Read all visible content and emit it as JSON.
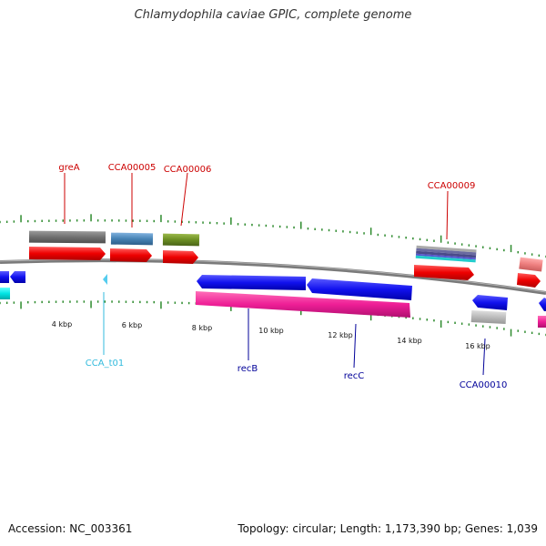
{
  "title": "Chlamydophila caviae GPIC, complete genome",
  "footer": {
    "accession": "Accession: NC_003361",
    "summary": "Topology: circular; Length: 1,173,390 bp; Genes: 1,039"
  },
  "colors": {
    "backbone": "#808080",
    "tick": "#2e8b2e",
    "forward_cds": "#ee1111",
    "reverse_cds": "#1111ee",
    "label_red": "#cc0000",
    "label_blue": "#000099",
    "label_cyan": "#33bbdd"
  },
  "scale": {
    "unit": "kbp",
    "ticks": [
      {
        "label": "4 kbp"
      },
      {
        "label": "6 kbp"
      },
      {
        "label": "8 kbp"
      },
      {
        "label": "10 kbp"
      },
      {
        "label": "12 kbp"
      },
      {
        "label": "14 kbp"
      },
      {
        "label": "16 kbp"
      }
    ]
  },
  "features": [
    {
      "label": "greA",
      "color": "#cc0000"
    },
    {
      "label": "CCA00005",
      "color": "#cc0000"
    },
    {
      "label": "CCA00006",
      "color": "#cc0000"
    },
    {
      "label": "CCA00009",
      "color": "#cc0000"
    },
    {
      "label": "CCA_t01",
      "color": "#33bbdd"
    },
    {
      "label": "recB",
      "color": "#000099"
    },
    {
      "label": "recC",
      "color": "#000099"
    },
    {
      "label": "CCA00010",
      "color": "#000099"
    }
  ]
}
